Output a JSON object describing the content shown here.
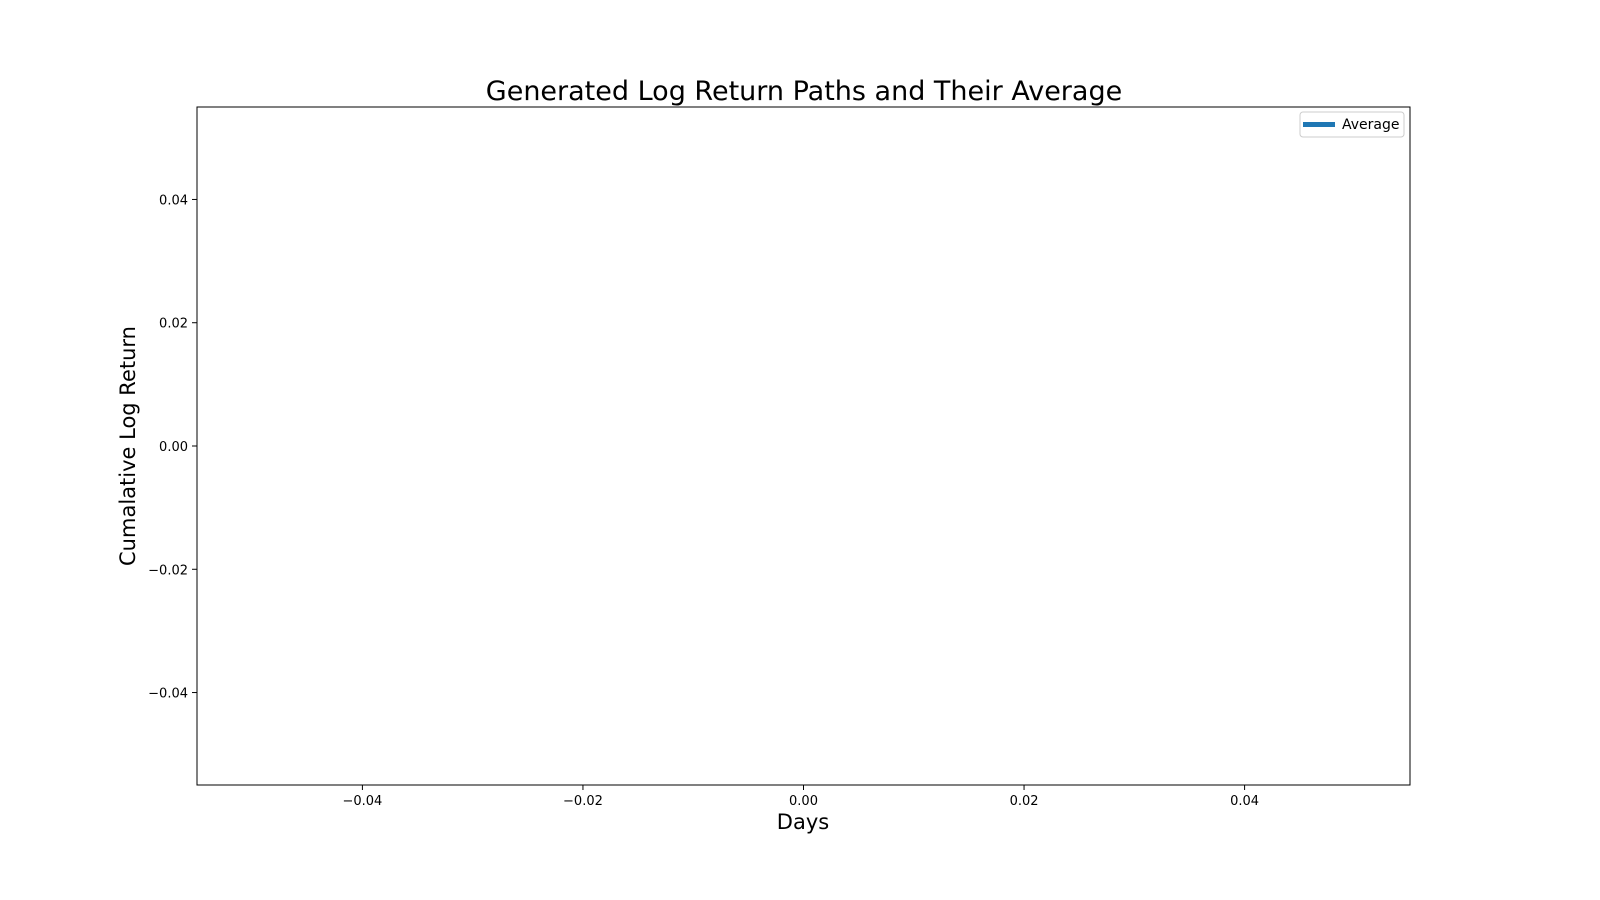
{
  "chart_data": {
    "type": "line",
    "title": "Generated Log Return Paths and Their Average",
    "xlabel": "Days",
    "ylabel": "Cumalative Log Return",
    "xlim": [
      -0.055,
      0.055
    ],
    "ylim": [
      -0.055,
      0.055
    ],
    "x_ticks": [
      -0.04,
      -0.02,
      0.0,
      0.02,
      0.04
    ],
    "x_tick_labels": [
      "−0.04",
      "−0.02",
      "0.00",
      "0.02",
      "0.04"
    ],
    "y_ticks": [
      -0.04,
      -0.02,
      0.0,
      0.02,
      0.04
    ],
    "y_tick_labels": [
      "−0.04",
      "−0.02",
      "0.00",
      "0.02",
      "0.04"
    ],
    "grid": false,
    "legend_placement": "top-right",
    "series": [
      {
        "name": "Average",
        "color": "#1f77b4",
        "x": [],
        "y": []
      }
    ]
  }
}
